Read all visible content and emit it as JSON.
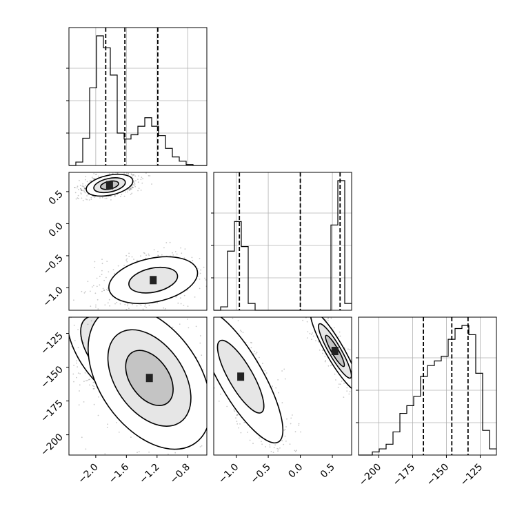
{
  "chart_data": {
    "type": "corner",
    "parameters": [
      {
        "range": [
          -2.35,
          -0.55
        ],
        "ticks": [
          -2.0,
          -1.6,
          -1.2,
          -0.8
        ],
        "tick_labels": [
          "−2.0",
          "−1.6",
          "−1.2",
          "−0.8"
        ]
      },
      {
        "range": [
          -1.35,
          0.8
        ],
        "ticks": [
          -1.0,
          -0.5,
          0.0,
          0.5
        ],
        "tick_labels": [
          "−1.0",
          "−0.5",
          "0.0",
          "0.5"
        ]
      },
      {
        "range": [
          -215,
          -113
        ],
        "ticks": [
          -200,
          -175,
          -150,
          -125
        ],
        "tick_labels": [
          "−200",
          "−175",
          "−150",
          "−125"
        ]
      }
    ],
    "grid": true,
    "histograms": [
      {
        "bin_edges": [
          -2.35,
          -2.26,
          -2.17,
          -2.08,
          -1.99,
          -1.9,
          -1.81,
          -1.72,
          -1.63,
          -1.54,
          -1.45,
          -1.36,
          -1.27,
          -1.18,
          -1.09,
          -1.0,
          -0.91,
          -0.82,
          -0.73,
          -0.64,
          -0.55
        ],
        "counts": [
          0,
          4,
          32,
          91,
          152,
          138,
          106,
          38,
          31,
          36,
          46,
          56,
          46,
          35,
          20,
          10,
          5,
          1,
          0,
          0
        ],
        "quantiles": [
          -1.87,
          -1.62,
          -1.19
        ]
      },
      {
        "bin_edges": [
          -1.35,
          -1.2425,
          -1.135,
          -1.0275,
          -0.92,
          -0.8125,
          -0.705,
          -0.5975,
          -0.49,
          -0.3825,
          -0.275,
          -0.1675,
          -0.06,
          0.0475,
          0.155,
          0.2625,
          0.37,
          0.4775,
          0.585,
          0.6925,
          0.8
        ],
        "counts": [
          0,
          3,
          52,
          78,
          56,
          6,
          0,
          0,
          0,
          0,
          0,
          0,
          0,
          0,
          0,
          0,
          0,
          75,
          114,
          6
        ],
        "quantiles": [
          -0.95,
          0.0,
          0.62
        ]
      },
      {
        "bin_edges": [
          -215,
          -209.9,
          -204.8,
          -199.7,
          -194.6,
          -189.5,
          -184.4,
          -179.3,
          -174.2,
          -169.1,
          -164,
          -158.9,
          -153.8,
          -148.7,
          -143.6,
          -138.5,
          -133.4,
          -128.3,
          -123.2,
          -118.1,
          -113
        ],
        "counts": [
          0,
          0,
          2,
          4,
          7,
          15,
          27,
          32,
          38,
          51,
          58,
          61,
          64,
          75,
          82,
          84,
          78,
          53,
          16,
          4
        ],
        "quantiles": [
          -167,
          -146,
          -134
        ]
      }
    ],
    "scatter_2d": [
      {
        "x_param": 0,
        "y_param": 1,
        "modes": [
          {
            "center": [
              -1.82,
              0.6
            ],
            "spread": [
              0.2,
              0.1
            ],
            "levels": 3
          },
          {
            "center": [
              -1.25,
              -0.88
            ],
            "spread": [
              0.38,
              0.22
            ],
            "levels": 2
          }
        ]
      },
      {
        "x_param": 0,
        "y_param": 2,
        "modes": [
          {
            "center": [
              -1.83,
              -138
            ],
            "spread": [
              0.25,
              28
            ],
            "levels": 3
          },
          {
            "center": [
              -1.3,
              -158
            ],
            "spread": [
              0.42,
              38
            ],
            "levels": 3
          }
        ]
      },
      {
        "x_param": 1,
        "y_param": 2,
        "modes": [
          {
            "center": [
              0.54,
              -138
            ],
            "spread": [
              0.09,
              22
            ],
            "levels": 3
          },
          {
            "center": [
              -0.93,
              -157
            ],
            "spread": [
              0.22,
              36
            ],
            "levels": 2
          }
        ]
      }
    ]
  }
}
